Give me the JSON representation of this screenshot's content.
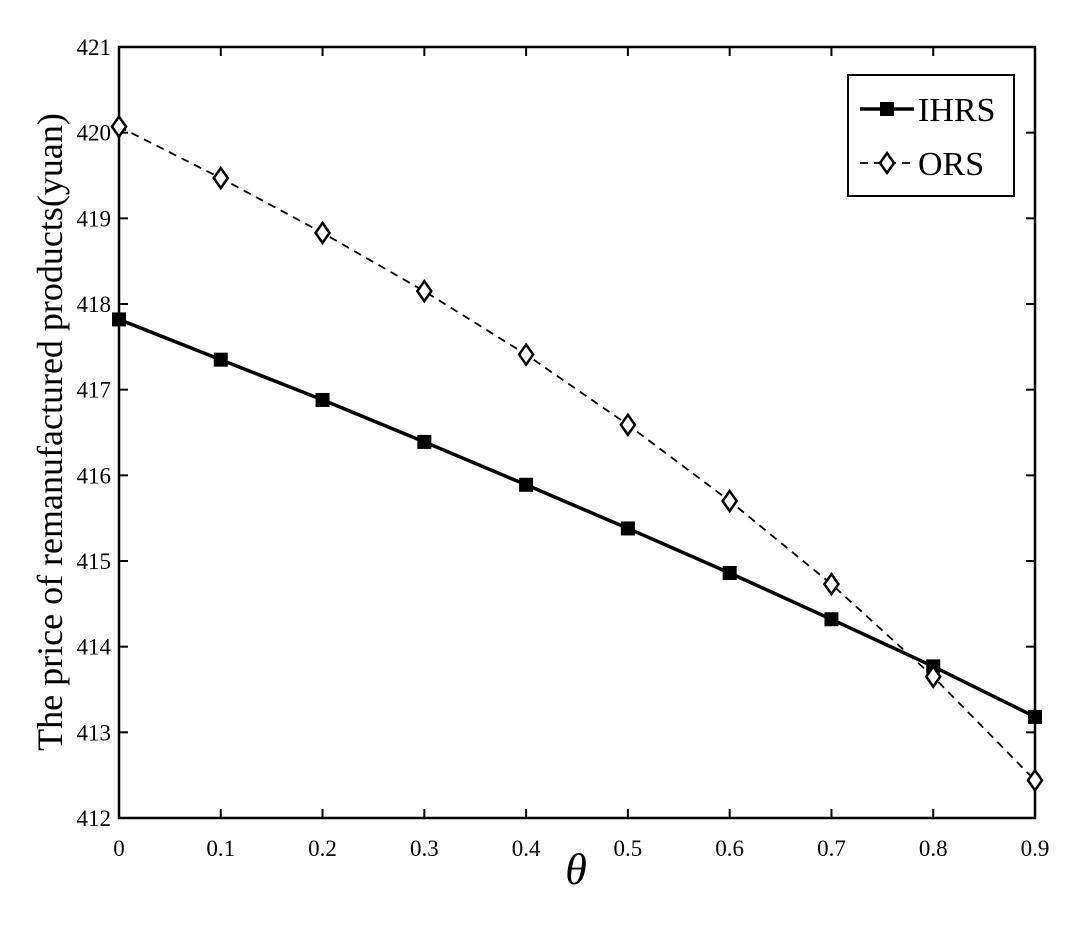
{
  "chart_data": {
    "type": "line",
    "title": "",
    "xlabel": "θ",
    "ylabel": "The price of remanufactured products(yuan)",
    "x": [
      0,
      0.1,
      0.2,
      0.3,
      0.4,
      0.5,
      0.6,
      0.7,
      0.8,
      0.9
    ],
    "x_tick_labels": [
      "0",
      "0.1",
      "0.2",
      "0.3",
      "0.4",
      "0.5",
      "0.6",
      "0.7",
      "0.8",
      "0.9"
    ],
    "y_tick_labels": [
      "412",
      "413",
      "414",
      "415",
      "416",
      "417",
      "418",
      "419",
      "420",
      "421"
    ],
    "xlim": [
      0,
      0.9
    ],
    "ylim": [
      412,
      421
    ],
    "grid": false,
    "legend_position": "top-right",
    "series": [
      {
        "name": "IHRS",
        "values": [
          417.82,
          417.35,
          416.88,
          416.39,
          415.89,
          415.38,
          414.86,
          414.32,
          413.77,
          413.18
        ],
        "line_style": "solid",
        "marker": "square",
        "color": "#000000"
      },
      {
        "name": "ORS",
        "values": [
          420.07,
          419.47,
          418.83,
          418.15,
          417.41,
          416.59,
          415.7,
          414.73,
          413.65,
          412.44
        ],
        "line_style": "dashed",
        "marker": "diamond",
        "color": "#000000"
      }
    ]
  }
}
